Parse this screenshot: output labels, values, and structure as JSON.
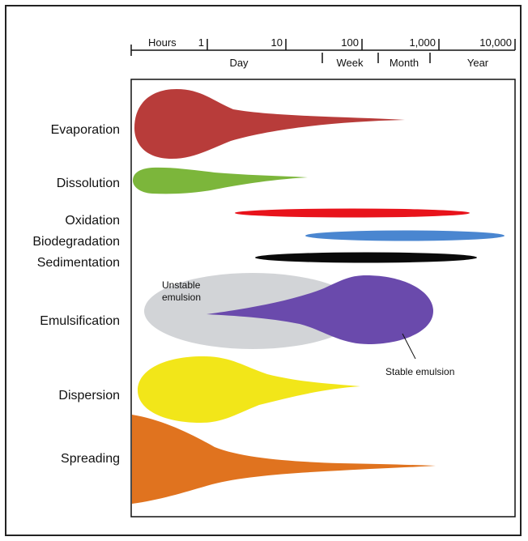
{
  "time_scale": {
    "upper_labels": [
      "Hours",
      "1",
      "10",
      "100",
      "1,000",
      "10,000"
    ],
    "lower_labels": [
      "Day",
      "Week",
      "Month",
      "Year"
    ]
  },
  "processes": [
    {
      "id": "evaporation",
      "label": "Evaporation",
      "color": "#b83c3a"
    },
    {
      "id": "dissolution",
      "label": "Dissolution",
      "color": "#7cb63b"
    },
    {
      "id": "oxidation",
      "label": "Oxidation",
      "color": "#e8131b"
    },
    {
      "id": "biodegradation",
      "label": "Biodegradation",
      "color": "#4a86d0"
    },
    {
      "id": "sedimentation",
      "label": "Sedimentation",
      "color": "#0a0a0a"
    },
    {
      "id": "emulsification",
      "label": "Emulsification",
      "color": "#6a4aac"
    },
    {
      "id": "dispersion",
      "label": "Dispersion",
      "color": "#f2e619"
    },
    {
      "id": "spreading",
      "label": "Spreading",
      "color": "#e0731f"
    }
  ],
  "annotations": {
    "unstable_line1": "Unstable",
    "unstable_line2": "emulsion",
    "unstable_color": "#d2d4d7",
    "stable": "Stable emulsion"
  }
}
